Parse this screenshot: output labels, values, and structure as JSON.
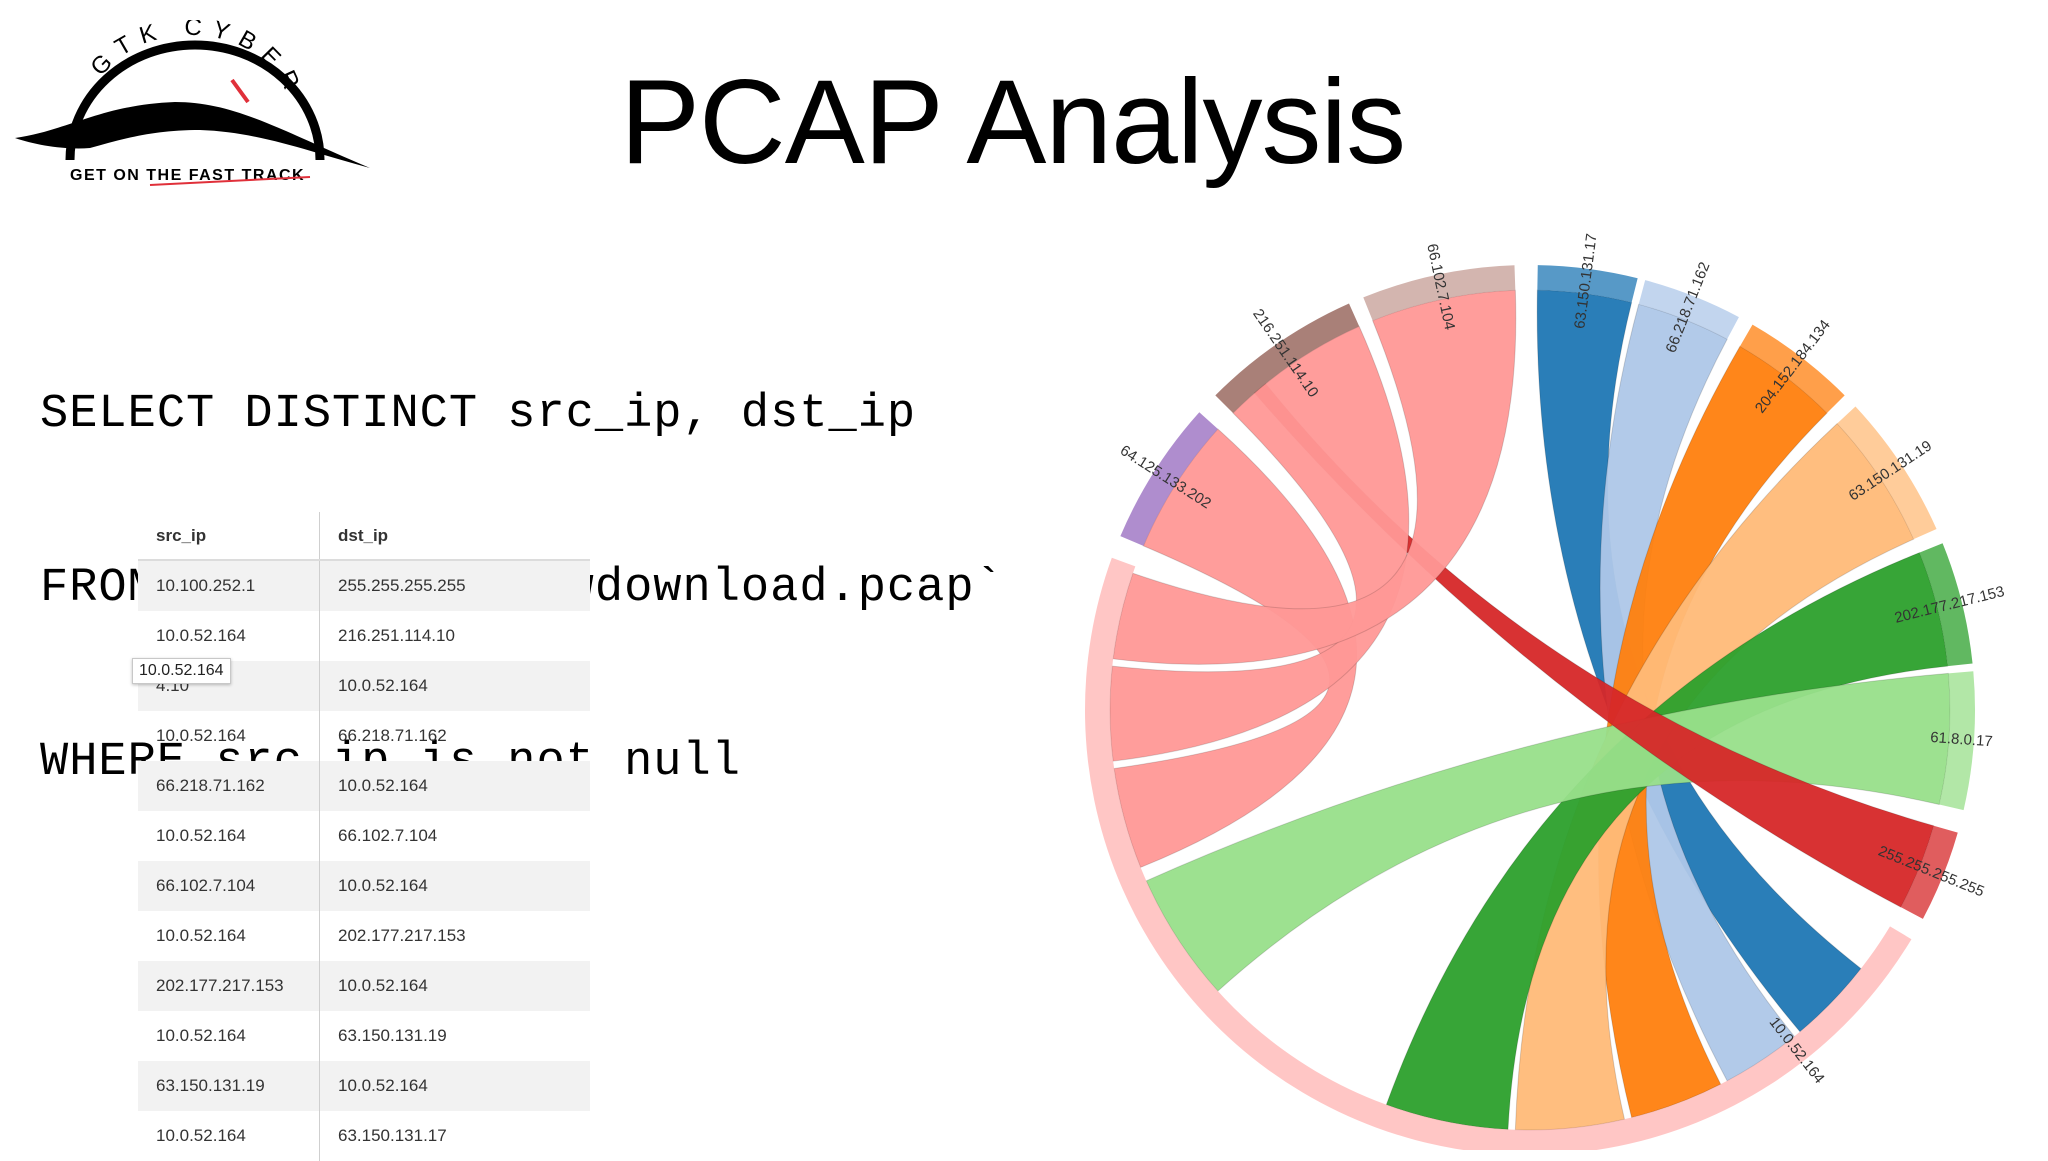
{
  "logo": {
    "brand": "GTK CYBER",
    "tagline": "GET ON THE FAST TRACK"
  },
  "title": "PCAP Analysis",
  "query": [
    "SELECT DISTINCT src_ip, dst_ip",
    "FROM dfs.test.`slowdownload.pcap`",
    "WHERE src_ip is not null"
  ],
  "table": {
    "headers": [
      "src_ip",
      "dst_ip"
    ],
    "rows": [
      [
        "10.100.252.1",
        "255.255.255.255"
      ],
      [
        "10.0.52.164",
        "216.251.114.10"
      ],
      [
        "4.10",
        "10.0.52.164"
      ],
      [
        "10.0.52.164",
        "66.218.71.162"
      ],
      [
        "66.218.71.162",
        "10.0.52.164"
      ],
      [
        "10.0.52.164",
        "66.102.7.104"
      ],
      [
        "66.102.7.104",
        "10.0.52.164"
      ],
      [
        "10.0.52.164",
        "202.177.217.153"
      ],
      [
        "202.177.217.153",
        "10.0.52.164"
      ],
      [
        "10.0.52.164",
        "63.150.131.19"
      ],
      [
        "63.150.131.19",
        "10.0.52.164"
      ],
      [
        "10.0.52.164",
        "63.150.131.17"
      ]
    ],
    "tooltip": "10.0.52.164"
  },
  "chord": {
    "groups": [
      {
        "label": "63.150.131.17",
        "color": "#1f77b4"
      },
      {
        "label": "66.218.71.162",
        "color": "#aec7e8"
      },
      {
        "label": "204.152.184.134",
        "color": "#ff7f0e"
      },
      {
        "label": "63.150.131.19",
        "color": "#ffbb78"
      },
      {
        "label": "202.177.217.153",
        "color": "#2ca02c"
      },
      {
        "label": "61.8.0.17",
        "color": "#98df8a"
      },
      {
        "label": "255.255.255.255",
        "color": "#d62728"
      },
      {
        "label": "10.0.52.164",
        "color": "#ff9896"
      },
      {
        "label": "64.125.133.202",
        "color": "#9467bd"
      },
      {
        "label": "216.251.114.10",
        "color": "#8c564b"
      },
      {
        "label": "66.102.7.104",
        "color": "#c49c94"
      }
    ],
    "edges": [
      {
        "from": "63.150.131.17",
        "to": "10.0.52.164"
      },
      {
        "from": "66.218.71.162",
        "to": "10.0.52.164"
      },
      {
        "from": "204.152.184.134",
        "to": "10.0.52.164"
      },
      {
        "from": "63.150.131.19",
        "to": "10.0.52.164"
      },
      {
        "from": "202.177.217.153",
        "to": "10.0.52.164"
      },
      {
        "from": "61.8.0.17",
        "to": "10.0.52.164"
      },
      {
        "from": "216.251.114.10",
        "to": "255.255.255.255"
      },
      {
        "from": "10.0.52.164",
        "to": "64.125.133.202"
      },
      {
        "from": "10.0.52.164",
        "to": "216.251.114.10"
      },
      {
        "from": "10.0.52.164",
        "to": "66.102.7.104"
      }
    ]
  }
}
